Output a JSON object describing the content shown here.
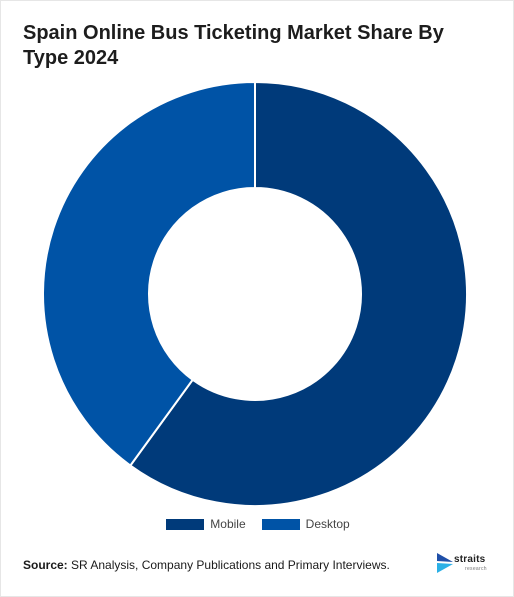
{
  "title": "Spain Online Bus Ticketing Market Share By Type 2024",
  "chart_data": {
    "type": "pie",
    "donut": true,
    "categories": [
      "Mobile",
      "Desktop"
    ],
    "values": [
      60,
      40
    ],
    "unit": "%",
    "colors": [
      "#003a7a",
      "#0053a6"
    ],
    "legend_position": "bottom-center"
  },
  "source": {
    "label": "Source:",
    "text": " SR Analysis, Company Publications and Primary Interviews."
  },
  "logo": {
    "text": "straits",
    "subtext": "research"
  }
}
